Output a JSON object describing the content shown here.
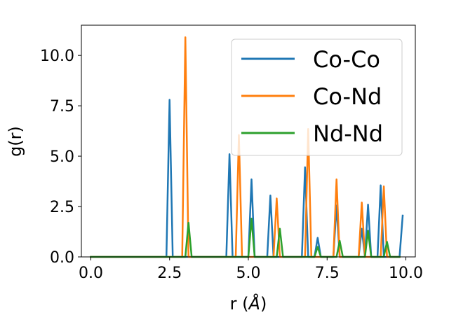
{
  "chart_data": {
    "type": "line",
    "xlabel_base": "r (",
    "xlabel_unit": "Å",
    "xlabel_close": ")",
    "ylabel": "g(r)",
    "xlim": [
      -0.3,
      10.3
    ],
    "ylim": [
      0,
      11.5
    ],
    "xticks": [
      0.0,
      2.5,
      5.0,
      7.5,
      10.0
    ],
    "xtick_labels": [
      "0.0",
      "2.5",
      "5.0",
      "7.5",
      "10.0"
    ],
    "yticks": [
      0.0,
      2.5,
      5.0,
      7.5,
      10.0
    ],
    "ytick_labels": [
      "0.0",
      "2.5",
      "5.0",
      "7.5",
      "10.0"
    ],
    "legend_position": "top-right",
    "series": [
      {
        "name": "Co-Co",
        "color": "#1f77b4",
        "x": [
          0.0,
          2.4,
          2.5,
          2.6,
          4.3,
          4.4,
          4.5,
          5.0,
          5.1,
          5.2,
          5.6,
          5.7,
          5.8,
          6.7,
          6.8,
          6.9,
          7.1,
          7.2,
          7.3,
          7.7,
          7.8,
          7.9,
          8.5,
          8.6,
          8.7,
          8.8,
          8.9,
          9.1,
          9.2,
          9.3,
          9.8,
          9.9
        ],
        "y": [
          0.0,
          0.0,
          7.8,
          0.0,
          0.0,
          5.1,
          0.0,
          0.0,
          3.85,
          0.0,
          0.0,
          3.05,
          0.0,
          0.0,
          4.45,
          0.0,
          0.0,
          0.95,
          0.0,
          0.0,
          2.55,
          0.0,
          0.0,
          1.4,
          0.0,
          2.6,
          0.0,
          0.0,
          3.55,
          0.0,
          0.0,
          2.05
        ]
      },
      {
        "name": "Co-Nd",
        "color": "#ff7f0e",
        "x": [
          0.0,
          2.9,
          3.0,
          3.1,
          4.6,
          4.7,
          4.8,
          5.8,
          5.9,
          6.0,
          6.8,
          6.9,
          7.0,
          7.7,
          7.8,
          7.9,
          8.5,
          8.6,
          8.7,
          9.2,
          9.3,
          9.4,
          9.8
        ],
        "y": [
          0.0,
          0.0,
          10.9,
          0.0,
          0.0,
          6.05,
          0.0,
          0.0,
          2.9,
          0.0,
          0.0,
          6.35,
          0.0,
          0.0,
          3.85,
          0.0,
          0.0,
          2.7,
          0.0,
          0.0,
          3.5,
          0.0,
          0.0
        ]
      },
      {
        "name": "Nd-Nd",
        "color": "#2ca02c",
        "x": [
          0.0,
          3.0,
          3.1,
          3.2,
          5.0,
          5.1,
          5.2,
          5.9,
          6.0,
          6.1,
          7.1,
          7.2,
          7.3,
          7.8,
          7.9,
          8.0,
          8.7,
          8.8,
          8.9,
          9.3,
          9.4,
          9.5,
          9.8
        ],
        "y": [
          0.0,
          0.0,
          1.7,
          0.0,
          0.0,
          1.9,
          0.0,
          0.0,
          1.4,
          0.0,
          0.0,
          0.5,
          0.0,
          0.0,
          0.8,
          0.0,
          0.0,
          1.3,
          0.0,
          0.0,
          0.75,
          0.0,
          0.0
        ]
      }
    ]
  }
}
